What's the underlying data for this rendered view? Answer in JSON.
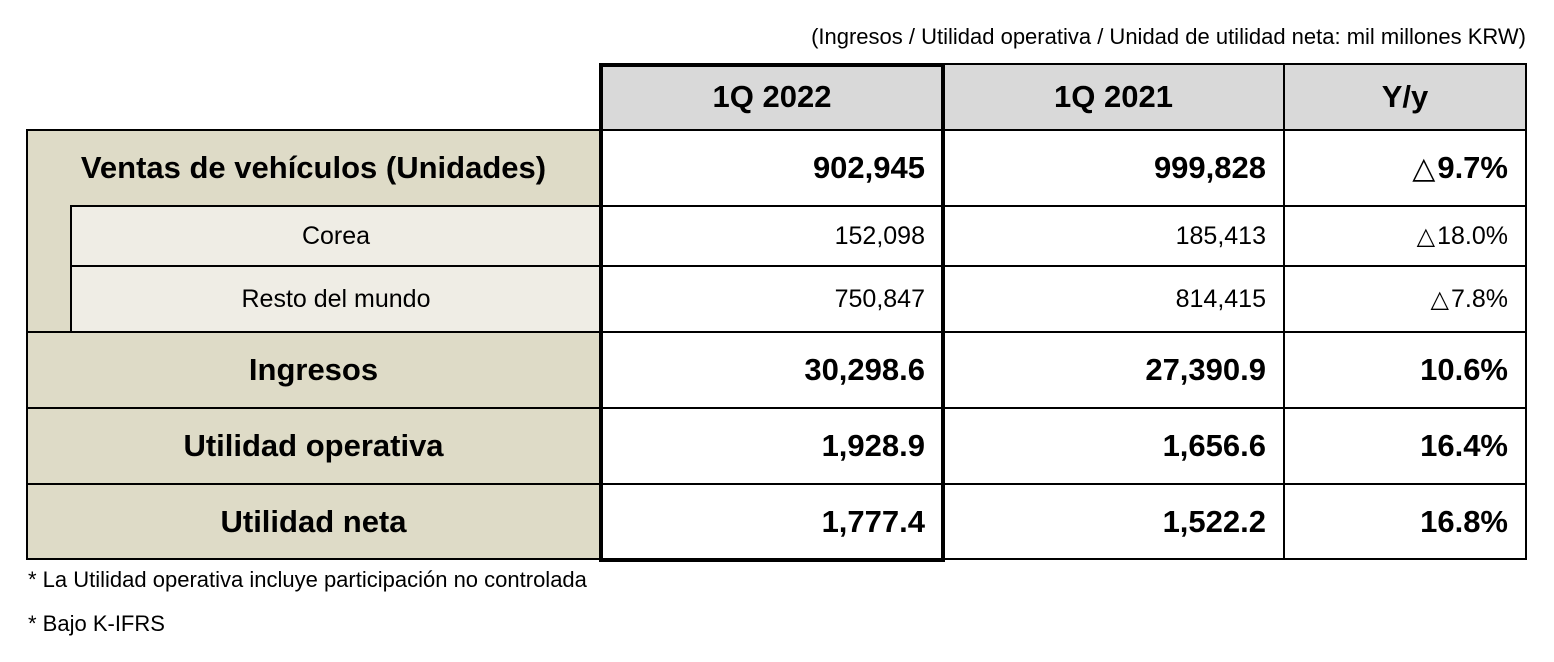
{
  "unit_note": "(Ingresos / Utilidad operativa / Unidad de utilidad neta: mil millones KRW)",
  "columns": [
    "1Q 2022",
    "1Q 2021",
    "Y/y"
  ],
  "rows": [
    {
      "label": "Ventas de vehículos (Unidades)",
      "q2022": "902,945",
      "q2021": "999,828",
      "yoy_symbol": "△",
      "yoy": "9.7%"
    },
    {
      "label": "Corea",
      "q2022": "152,098",
      "q2021": "185,413",
      "yoy_symbol": "△",
      "yoy": "18.0%"
    },
    {
      "label": "Resto del mundo",
      "q2022": "750,847",
      "q2021": "814,415",
      "yoy_symbol": "△",
      "yoy": "7.8%"
    },
    {
      "label": "Ingresos",
      "q2022": "30,298.6",
      "q2021": "27,390.9",
      "yoy": "10.6%"
    },
    {
      "label": "Utilidad operativa",
      "q2022": "1,928.9",
      "q2021": "1,656.6",
      "yoy": "16.4%"
    },
    {
      "label": "Utilidad neta",
      "q2022": "1,777.4",
      "q2021": "1,522.2",
      "yoy": "16.8%"
    }
  ],
  "footnotes": [
    "* La Utilidad operativa incluye participación no controlada",
    "* Bajo K-IFRS"
  ],
  "colors": {
    "header_bg": "#d9d9d9",
    "label_bg": "#dedbc7",
    "sublabel_bg": "#efede5"
  }
}
